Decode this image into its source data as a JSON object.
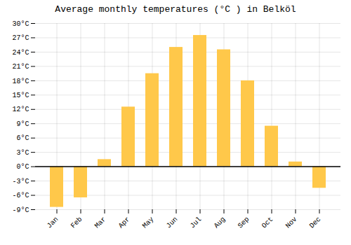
{
  "chart_data": {
    "type": "bar",
    "title": "Average monthly temperatures (°C ) in Belköl",
    "categories": [
      "Jan",
      "Feb",
      "Mar",
      "Apr",
      "May",
      "Jun",
      "Jul",
      "Aug",
      "Sep",
      "Oct",
      "Nov",
      "Dec"
    ],
    "values": [
      -8.5,
      -6.5,
      1.5,
      12.5,
      19.5,
      25.0,
      27.5,
      24.5,
      18.0,
      8.5,
      1.0,
      -4.5
    ],
    "color": "#FFC84A",
    "ylim": [
      -9,
      30
    ],
    "yticks": [
      {
        "value": -9,
        "label": "-9°C"
      },
      {
        "value": -6,
        "label": "-6°C"
      },
      {
        "value": -3,
        "label": "-3°C"
      },
      {
        "value": 0,
        "label": "0°C"
      },
      {
        "value": 3,
        "label": "3°C"
      },
      {
        "value": 6,
        "label": "6°C"
      },
      {
        "value": 9,
        "label": "9°C"
      },
      {
        "value": 12,
        "label": "12°C"
      },
      {
        "value": 15,
        "label": "15°C"
      },
      {
        "value": 18,
        "label": "18°C"
      },
      {
        "value": 21,
        "label": "21°C"
      },
      {
        "value": 24,
        "label": "24°C"
      },
      {
        "value": 27,
        "label": "27°C"
      },
      {
        "value": 30,
        "label": "30°C"
      }
    ],
    "grid": true
  }
}
